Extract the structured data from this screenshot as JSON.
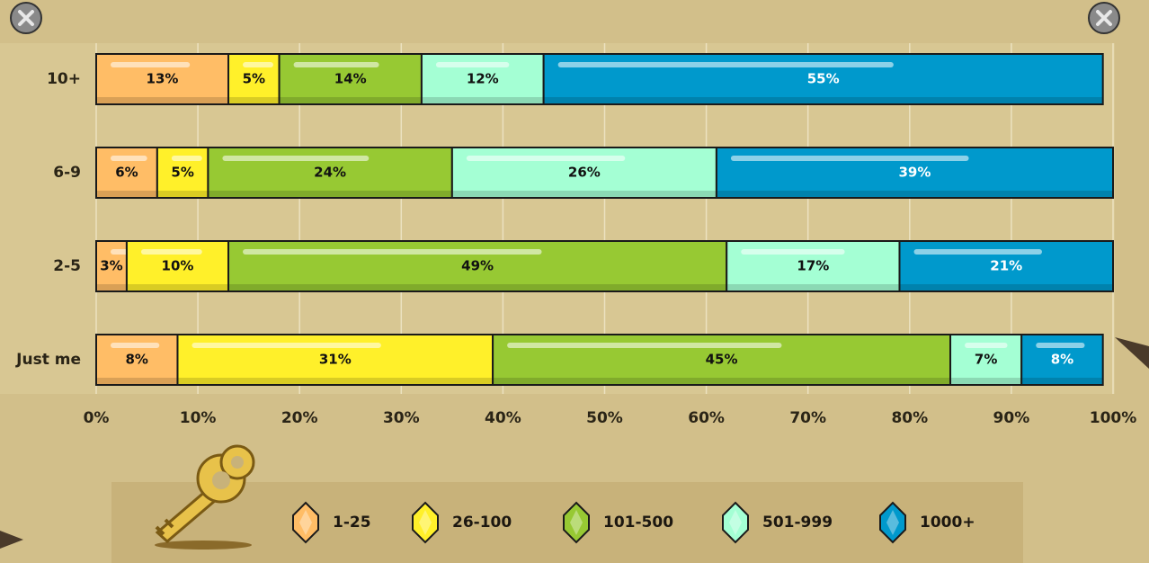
{
  "chart_data": {
    "type": "stacked-barh",
    "categories": [
      "10+",
      "6-9",
      "2-5",
      "Just me"
    ],
    "series": [
      {
        "name": "1-25",
        "color": "#ffbd66",
        "values": [
          13,
          6,
          3,
          8
        ],
        "value_labels": [
          "13%",
          "6%",
          "3%",
          "8%"
        ]
      },
      {
        "name": "26-100",
        "color": "#fff02a",
        "values": [
          5,
          5,
          10,
          31
        ],
        "value_labels": [
          "5%",
          "5%",
          "10%",
          "31%"
        ]
      },
      {
        "name": "101-500",
        "color": "#97c933",
        "values": [
          14,
          24,
          49,
          45
        ],
        "value_labels": [
          "14%",
          "24%",
          "49%",
          "45%"
        ]
      },
      {
        "name": "501-999",
        "color": "#a4ffd4",
        "values": [
          12,
          26,
          17,
          7
        ],
        "value_labels": [
          "12%",
          "26%",
          "17%",
          "7%"
        ]
      },
      {
        "name": "1000+",
        "color": "#0099cc",
        "values": [
          55,
          39,
          21,
          8
        ],
        "value_labels": [
          "55%",
          "39%",
          "21%",
          "8%"
        ]
      }
    ],
    "xlim": [
      0,
      100
    ],
    "xticks": [
      {
        "value": 0,
        "label": "0%"
      },
      {
        "value": 10,
        "label": "10%"
      },
      {
        "value": 20,
        "label": "20%"
      },
      {
        "value": 30,
        "label": "30%"
      },
      {
        "value": 40,
        "label": "40%"
      },
      {
        "value": 50,
        "label": "50%"
      },
      {
        "value": 60,
        "label": "60%"
      },
      {
        "value": 70,
        "label": "70%"
      },
      {
        "value": 80,
        "label": "80%"
      },
      {
        "value": 90,
        "label": "90%"
      },
      {
        "value": 100,
        "label": "100%"
      }
    ],
    "grid": true
  }
}
